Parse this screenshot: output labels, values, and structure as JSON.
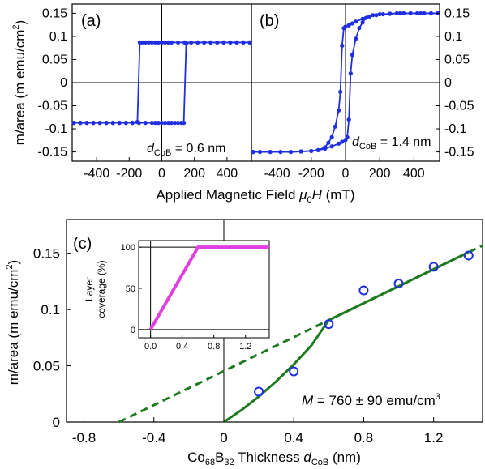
{
  "colors": {
    "data": "#1f2fe0",
    "fit": "#1e7a1e",
    "inset": "#e040e0",
    "axis": "#000000"
  },
  "chart_data": [
    {
      "id": "a",
      "type": "line",
      "panel_label": "(a)",
      "annotation": {
        "prefix": "d",
        "sub": "CoB",
        "suffix": " = 0.6 nm"
      },
      "xlim": [
        -550,
        550
      ],
      "ylim": [
        -0.17,
        0.17
      ],
      "xticks": [
        "-400",
        "-200",
        "0",
        "200",
        "400"
      ],
      "xtick_values": [
        -400,
        -200,
        0,
        200,
        400
      ],
      "yticks": [
        "0.15",
        "0.1",
        "0.05",
        "0",
        "-0.05",
        "-0.1",
        "-0.15"
      ],
      "ytick_values": [
        0.15,
        0.1,
        0.05,
        0,
        -0.05,
        -0.1,
        -0.15
      ],
      "ylabel": {
        "main": "m/area (m emu/cm",
        "sup": "2",
        "end": ")"
      },
      "branch_down": [
        [
          540,
          0.087
        ],
        [
          500,
          0.087
        ],
        [
          460,
          0.087
        ],
        [
          420,
          0.087
        ],
        [
          380,
          0.087
        ],
        [
          340,
          0.087
        ],
        [
          300,
          0.087
        ],
        [
          260,
          0.087
        ],
        [
          220,
          0.087
        ],
        [
          180,
          0.087
        ],
        [
          140,
          0.087
        ],
        [
          100,
          0.087
        ],
        [
          60,
          0.087
        ],
        [
          40,
          0.087
        ],
        [
          20,
          0.087
        ],
        [
          0,
          0.087
        ],
        [
          -20,
          0.087
        ],
        [
          -40,
          0.087
        ],
        [
          -60,
          0.087
        ],
        [
          -80,
          0.087
        ],
        [
          -100,
          0.087
        ],
        [
          -120,
          0.087
        ],
        [
          -135,
          0.087
        ],
        [
          -150,
          -0.085
        ],
        [
          -180,
          -0.087
        ],
        [
          -220,
          -0.087
        ],
        [
          -260,
          -0.087
        ],
        [
          -300,
          -0.087
        ],
        [
          -340,
          -0.087
        ],
        [
          -380,
          -0.087
        ],
        [
          -420,
          -0.087
        ],
        [
          -460,
          -0.087
        ],
        [
          -500,
          -0.087
        ],
        [
          -540,
          -0.087
        ]
      ],
      "branch_up": [
        [
          -540,
          -0.087
        ],
        [
          -500,
          -0.087
        ],
        [
          -460,
          -0.087
        ],
        [
          -420,
          -0.087
        ],
        [
          -380,
          -0.087
        ],
        [
          -340,
          -0.087
        ],
        [
          -300,
          -0.087
        ],
        [
          -260,
          -0.087
        ],
        [
          -220,
          -0.087
        ],
        [
          -180,
          -0.087
        ],
        [
          -140,
          -0.087
        ],
        [
          -100,
          -0.087
        ],
        [
          -60,
          -0.087
        ],
        [
          -40,
          -0.087
        ],
        [
          -20,
          -0.087
        ],
        [
          0,
          -0.087
        ],
        [
          20,
          -0.087
        ],
        [
          40,
          -0.087
        ],
        [
          60,
          -0.087
        ],
        [
          80,
          -0.087
        ],
        [
          100,
          -0.087
        ],
        [
          120,
          -0.087
        ],
        [
          135,
          -0.087
        ],
        [
          150,
          0.085
        ],
        [
          180,
          0.087
        ],
        [
          220,
          0.087
        ],
        [
          260,
          0.087
        ],
        [
          300,
          0.087
        ],
        [
          340,
          0.087
        ],
        [
          380,
          0.087
        ],
        [
          420,
          0.087
        ],
        [
          460,
          0.087
        ],
        [
          500,
          0.087
        ],
        [
          540,
          0.087
        ]
      ]
    },
    {
      "id": "b",
      "type": "line",
      "panel_label": "(b)",
      "annotation": {
        "prefix": "d",
        "sub": "CoB",
        "suffix": " = 1.4 nm"
      },
      "xlim": [
        -550,
        550
      ],
      "ylim": [
        -0.17,
        0.17
      ],
      "xticks": [
        "-400",
        "-200",
        "0",
        "200",
        "400"
      ],
      "xtick_values": [
        -400,
        -200,
        0,
        200,
        400
      ],
      "yticks": [
        "0.15",
        "0.1",
        "0.05",
        "0",
        "-0.05",
        "-0.1",
        "-0.15"
      ],
      "ytick_values": [
        0.15,
        0.1,
        0.05,
        0,
        -0.05,
        -0.1,
        -0.15
      ],
      "xlabel": {
        "main": "Applied Magnetic Field ",
        "mu": "μ",
        "musub": "0",
        "var": "H",
        "end": " (mT)"
      },
      "branch_down": [
        [
          540,
          0.15
        ],
        [
          500,
          0.15
        ],
        [
          460,
          0.15
        ],
        [
          420,
          0.15
        ],
        [
          380,
          0.15
        ],
        [
          340,
          0.15
        ],
        [
          300,
          0.15
        ],
        [
          260,
          0.149
        ],
        [
          220,
          0.148
        ],
        [
          180,
          0.146
        ],
        [
          140,
          0.143
        ],
        [
          100,
          0.138
        ],
        [
          60,
          0.132
        ],
        [
          40,
          0.128
        ],
        [
          20,
          0.124
        ],
        [
          0,
          0.121
        ],
        [
          -10,
          0.118
        ],
        [
          -20,
          0.08
        ],
        [
          -30,
          -0.02
        ],
        [
          -40,
          -0.06
        ],
        [
          -60,
          -0.095
        ],
        [
          -80,
          -0.118
        ],
        [
          -100,
          -0.13
        ],
        [
          -120,
          -0.14
        ],
        [
          -160,
          -0.146
        ],
        [
          -200,
          -0.148
        ],
        [
          -260,
          -0.149
        ],
        [
          -320,
          -0.15
        ],
        [
          -380,
          -0.15
        ],
        [
          -440,
          -0.15
        ],
        [
          -500,
          -0.15
        ],
        [
          -540,
          -0.15
        ]
      ],
      "branch_up": [
        [
          -540,
          -0.15
        ],
        [
          -500,
          -0.15
        ],
        [
          -440,
          -0.15
        ],
        [
          -380,
          -0.15
        ],
        [
          -320,
          -0.15
        ],
        [
          -260,
          -0.149
        ],
        [
          -200,
          -0.148
        ],
        [
          -160,
          -0.146
        ],
        [
          -120,
          -0.143
        ],
        [
          -80,
          -0.138
        ],
        [
          -40,
          -0.132
        ],
        [
          -20,
          -0.128
        ],
        [
          0,
          -0.124
        ],
        [
          10,
          -0.118
        ],
        [
          20,
          -0.08
        ],
        [
          30,
          0.02
        ],
        [
          40,
          0.06
        ],
        [
          60,
          0.095
        ],
        [
          80,
          0.118
        ],
        [
          100,
          0.13
        ],
        [
          120,
          0.14
        ],
        [
          160,
          0.146
        ],
        [
          200,
          0.148
        ],
        [
          260,
          0.149
        ],
        [
          320,
          0.15
        ],
        [
          380,
          0.15
        ],
        [
          440,
          0.15
        ],
        [
          500,
          0.15
        ],
        [
          540,
          0.15
        ]
      ]
    },
    {
      "id": "c",
      "type": "scatter",
      "panel_label": "(c)",
      "xlim": [
        -0.9,
        1.48
      ],
      "ylim": [
        0,
        0.18
      ],
      "xticks": [
        "-0.8",
        "-0.4",
        "0",
        "0.4",
        "0.8",
        "1.2"
      ],
      "xtick_values": [
        -0.8,
        -0.4,
        0,
        0.4,
        0.8,
        1.2
      ],
      "yticks": [
        "0.15",
        "0.1",
        "0.05",
        "0"
      ],
      "ytick_values": [
        0.15,
        0.1,
        0.05,
        0
      ],
      "ylabel": {
        "main": "m/area (m emu/cm",
        "sup": "2",
        "end": ")"
      },
      "xlabel": {
        "a": "Co",
        "asub": "68",
        "b": "B",
        "bsub": "32",
        "c": " Thickness ",
        "var": "d",
        "vsub": "CoB",
        "end": " (nm)"
      },
      "annotation": {
        "var": "M",
        "text": " = 760 ± 90 emu/cm",
        "sup": "3"
      },
      "points": {
        "x": [
          0.2,
          0.4,
          0.6,
          0.8,
          1.0,
          1.2,
          1.4
        ],
        "y": [
          0.027,
          0.045,
          0.087,
          0.117,
          0.123,
          0.138,
          0.148
        ]
      },
      "linear_fit": {
        "x": [
          -0.6,
          1.48
        ],
        "y": [
          0,
          0.1569
        ]
      },
      "model_curve": {
        "x": [
          0,
          0.1,
          0.2,
          0.3,
          0.4,
          0.5,
          0.6,
          0.8,
          1.0,
          1.2,
          1.4
        ],
        "y": [
          0,
          0.0105,
          0.0226,
          0.0362,
          0.0513,
          0.0679,
          0.0905,
          0.1056,
          0.1207,
          0.1358,
          0.1509
        ]
      },
      "inset": {
        "type": "line",
        "xlim": [
          -0.15,
          1.5
        ],
        "ylim": [
          -10,
          108
        ],
        "xticks": [
          "0.0",
          "0.4",
          "0.8",
          "1.2"
        ],
        "xtick_values": [
          0,
          0.4,
          0.8,
          1.2
        ],
        "yticks": [
          "100",
          "50",
          "0"
        ],
        "ytick_values": [
          100,
          50,
          0
        ],
        "ylabel_line1": "Layer",
        "ylabel_line2": "coverage (%)",
        "x": [
          0,
          0.6,
          1.5
        ],
        "y": [
          0,
          100,
          100
        ]
      }
    }
  ]
}
